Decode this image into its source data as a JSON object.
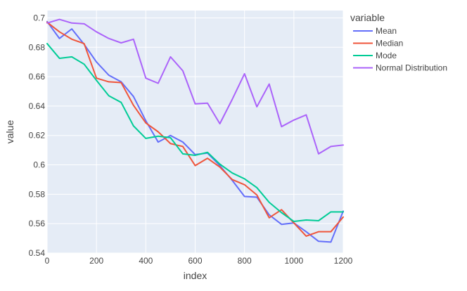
{
  "chart_data": {
    "type": "line",
    "xlabel": "index",
    "ylabel": "value",
    "legend_title": "variable",
    "legend_position": "top-right",
    "xlim": [
      0,
      1200
    ],
    "ylim": [
      0.54,
      0.705
    ],
    "x_ticks": [
      0,
      200,
      400,
      600,
      800,
      1000,
      1200
    ],
    "x_tick_labels": [
      "0",
      "200",
      "400",
      "600",
      "800",
      "1000",
      "1200"
    ],
    "y_ticks": [
      0.54,
      0.56,
      0.58,
      0.6,
      0.62,
      0.64,
      0.66,
      0.68,
      0.7
    ],
    "y_tick_labels": [
      "0.54",
      "0.56",
      "0.58",
      "0.6",
      "0.62",
      "0.64",
      "0.66",
      "0.68",
      "0.7"
    ],
    "grid": true,
    "x": [
      0,
      50,
      100,
      150,
      200,
      250,
      300,
      350,
      400,
      450,
      500,
      550,
      600,
      650,
      700,
      750,
      800,
      850,
      900,
      950,
      1000,
      1050,
      1100,
      1150,
      1200
    ],
    "series": [
      {
        "name": "Mean",
        "color": "#636efa",
        "values": [
          0.6975,
          0.686,
          0.6925,
          0.682,
          0.67,
          0.661,
          0.6565,
          0.6465,
          0.63,
          0.6155,
          0.62,
          0.6155,
          0.607,
          0.608,
          0.5995,
          0.5895,
          0.5785,
          0.578,
          0.566,
          0.5595,
          0.5605,
          0.5545,
          0.548,
          0.5475,
          0.5685
        ]
      },
      {
        "name": "Median",
        "color": "#ef553b",
        "values": [
          0.697,
          0.6905,
          0.6855,
          0.6825,
          0.659,
          0.6565,
          0.656,
          0.6405,
          0.6285,
          0.6225,
          0.6145,
          0.6125,
          0.5995,
          0.6045,
          0.5985,
          0.59,
          0.5865,
          0.5795,
          0.564,
          0.5695,
          0.5605,
          0.5515,
          0.5545,
          0.5545,
          0.5645
        ]
      },
      {
        "name": "Mode",
        "color": "#00cc96",
        "values": [
          0.6825,
          0.6725,
          0.6735,
          0.6685,
          0.6575,
          0.647,
          0.6425,
          0.6265,
          0.618,
          0.6195,
          0.6185,
          0.6075,
          0.6065,
          0.6085,
          0.6005,
          0.5945,
          0.5905,
          0.5845,
          0.5745,
          0.5675,
          0.5615,
          0.5625,
          0.562,
          0.568,
          0.568
        ]
      },
      {
        "name": "Normal Distribution",
        "color": "#ab63fa",
        "values": [
          0.6965,
          0.699,
          0.6965,
          0.696,
          0.6905,
          0.686,
          0.683,
          0.6855,
          0.659,
          0.6555,
          0.6735,
          0.664,
          0.6415,
          0.642,
          0.628,
          0.6445,
          0.662,
          0.6395,
          0.655,
          0.626,
          0.6305,
          0.634,
          0.6075,
          0.6125,
          0.6135
        ]
      }
    ]
  }
}
